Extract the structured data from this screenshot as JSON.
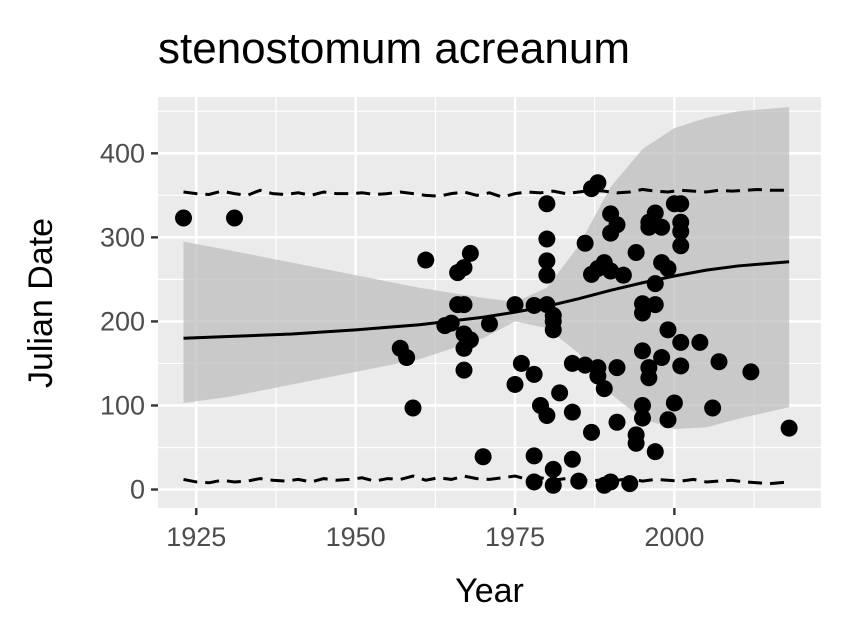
{
  "chart_data": {
    "type": "scatter",
    "title": "stenostomum acreanum",
    "xlabel": "Year",
    "ylabel": "Julian Date",
    "xlim": [
      1919,
      2023
    ],
    "ylim": [
      -22,
      467
    ],
    "x_ticks": [
      1925,
      1950,
      1975,
      2000
    ],
    "y_ticks": [
      0,
      100,
      200,
      300,
      400
    ],
    "grid": true,
    "legend": "none",
    "colors": {
      "panel_bg": "#ebebeb",
      "grid": "#ffffff",
      "points": "#000000",
      "ribbon": "#bdbdbd",
      "line": "#000000",
      "tick": "#333333"
    },
    "points": [
      [
        1923,
        323
      ],
      [
        1931,
        323
      ],
      [
        1957,
        168
      ],
      [
        1958,
        157
      ],
      [
        1959,
        97
      ],
      [
        1961,
        273
      ],
      [
        1964,
        195
      ],
      [
        1965,
        198
      ],
      [
        1966,
        220
      ],
      [
        1966,
        258
      ],
      [
        1967,
        264
      ],
      [
        1967,
        220
      ],
      [
        1967,
        185
      ],
      [
        1967,
        168
      ],
      [
        1967,
        142
      ],
      [
        1968,
        281
      ],
      [
        1968,
        178
      ],
      [
        1970,
        39
      ],
      [
        1971,
        197
      ],
      [
        1975,
        220
      ],
      [
        1975,
        125
      ],
      [
        1976,
        150
      ],
      [
        1978,
        219
      ],
      [
        1978,
        137
      ],
      [
        1978,
        40
      ],
      [
        1978,
        9
      ],
      [
        1979,
        100
      ],
      [
        1980,
        340
      ],
      [
        1980,
        298
      ],
      [
        1980,
        272
      ],
      [
        1980,
        255
      ],
      [
        1980,
        220
      ],
      [
        1980,
        88
      ],
      [
        1981,
        207
      ],
      [
        1981,
        200
      ],
      [
        1981,
        190
      ],
      [
        1981,
        24
      ],
      [
        1981,
        5
      ],
      [
        1982,
        115
      ],
      [
        1984,
        150
      ],
      [
        1984,
        92
      ],
      [
        1984,
        36
      ],
      [
        1985,
        10
      ],
      [
        1986,
        293
      ],
      [
        1986,
        148
      ],
      [
        1987,
        358
      ],
      [
        1987,
        256
      ],
      [
        1987,
        68
      ],
      [
        1988,
        365
      ],
      [
        1988,
        263
      ],
      [
        1988,
        145
      ],
      [
        1988,
        135
      ],
      [
        1989,
        270
      ],
      [
        1989,
        120
      ],
      [
        1989,
        5
      ],
      [
        1990,
        328
      ],
      [
        1990,
        305
      ],
      [
        1990,
        260
      ],
      [
        1990,
        9
      ],
      [
        1991,
        315
      ],
      [
        1991,
        145
      ],
      [
        1991,
        80
      ],
      [
        1992,
        255
      ],
      [
        1993,
        7
      ],
      [
        1994,
        282
      ],
      [
        1994,
        65
      ],
      [
        1994,
        55
      ],
      [
        1995,
        221
      ],
      [
        1995,
        210
      ],
      [
        1995,
        165
      ],
      [
        1995,
        100
      ],
      [
        1995,
        85
      ],
      [
        1996,
        318
      ],
      [
        1996,
        312
      ],
      [
        1996,
        145
      ],
      [
        1996,
        133
      ],
      [
        1997,
        329
      ],
      [
        1997,
        220
      ],
      [
        1997,
        245
      ],
      [
        1997,
        45
      ],
      [
        1998,
        312
      ],
      [
        1998,
        270
      ],
      [
        1998,
        157
      ],
      [
        1999,
        263
      ],
      [
        1999,
        190
      ],
      [
        1999,
        83
      ],
      [
        2000,
        340
      ],
      [
        2000,
        103
      ],
      [
        2001,
        340
      ],
      [
        2001,
        318
      ],
      [
        2001,
        307
      ],
      [
        2001,
        290
      ],
      [
        2001,
        175
      ],
      [
        2001,
        147
      ],
      [
        2004,
        175
      ],
      [
        2006,
        97
      ],
      [
        2007,
        152
      ],
      [
        2012,
        140
      ],
      [
        2018,
        73
      ]
    ],
    "trend_line": {
      "x": [
        1923,
        1930,
        1940,
        1950,
        1960,
        1970,
        1975,
        1980,
        1985,
        1990,
        1995,
        2000,
        2005,
        2010,
        2018
      ],
      "y": [
        180,
        182,
        185,
        190,
        196,
        205,
        211,
        218,
        227,
        237,
        246,
        254,
        261,
        266,
        271
      ]
    },
    "confidence_band": {
      "x": [
        1923,
        1930,
        1940,
        1950,
        1960,
        1970,
        1975,
        1980,
        1985,
        1990,
        1995,
        2000,
        2005,
        2010,
        2018
      ],
      "upper": [
        295,
        285,
        270,
        255,
        240,
        228,
        223,
        240,
        290,
        360,
        405,
        430,
        442,
        450,
        455
      ],
      "lower": [
        103,
        110,
        125,
        140,
        155,
        180,
        200,
        192,
        162,
        114,
        84,
        72,
        74,
        84,
        98
      ]
    },
    "upper_dashed": {
      "x": [
        1923,
        1925,
        1927,
        1929,
        1931,
        1933,
        1935,
        1937,
        1939,
        1941,
        1943,
        1945,
        1947,
        1949,
        1951,
        1953,
        1955,
        1957,
        1959,
        1961,
        1963,
        1965,
        1967,
        1969,
        1971,
        1973,
        1975,
        1977,
        1979,
        1981,
        1983,
        1985,
        1987,
        1989,
        1991,
        1993,
        1995,
        1997,
        1999,
        2001,
        2003,
        2005,
        2007,
        2009,
        2011,
        2013,
        2015,
        2018
      ],
      "y": [
        354,
        352,
        351,
        355,
        352,
        350,
        356,
        352,
        351,
        353,
        350,
        354,
        352,
        352,
        353,
        351,
        352,
        354,
        352,
        350,
        349,
        352,
        354,
        350,
        353,
        348,
        352,
        354,
        353,
        355,
        352,
        354,
        356,
        355,
        353,
        354,
        357,
        355,
        354,
        356,
        355,
        354,
        356,
        355,
        356,
        357,
        356,
        356
      ]
    },
    "lower_dashed": {
      "x": [
        1923,
        1925,
        1927,
        1929,
        1931,
        1933,
        1935,
        1937,
        1939,
        1941,
        1943,
        1945,
        1947,
        1949,
        1951,
        1953,
        1955,
        1957,
        1959,
        1961,
        1963,
        1965,
        1967,
        1969,
        1971,
        1973,
        1975,
        1977,
        1979,
        1981,
        1983,
        1985,
        1987,
        1989,
        1991,
        1993,
        1995,
        1997,
        1999,
        2001,
        2003,
        2005,
        2007,
        2009,
        2011,
        2013,
        2015,
        2018
      ],
      "y": [
        12,
        9,
        8,
        11,
        9,
        10,
        13,
        11,
        10,
        12,
        9,
        13,
        11,
        12,
        14,
        10,
        13,
        12,
        16,
        11,
        14,
        12,
        16,
        13,
        12,
        14,
        16,
        12,
        14,
        11,
        13,
        12,
        10,
        12,
        11,
        13,
        10,
        12,
        11,
        10,
        12,
        9,
        10,
        11,
        9,
        8,
        7,
        9
      ]
    }
  }
}
